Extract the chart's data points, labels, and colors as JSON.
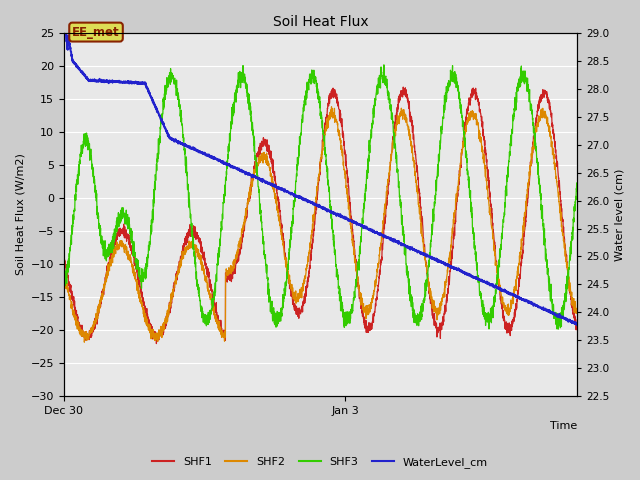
{
  "title": "Soil Heat Flux",
  "ylabel_left": "Soil Heat Flux (W/m2)",
  "ylabel_right": "Water level (cm)",
  "xlabel": "Time",
  "ylim_left": [
    -30,
    25
  ],
  "ylim_right": [
    22.5,
    29.0
  ],
  "x_tick_labels": [
    "Dec 30",
    "Jan 3"
  ],
  "x_tick_positions": [
    0.0,
    4.0
  ],
  "fig_bg_color": "#cccccc",
  "plot_bg_color": "#e8e8e8",
  "shf1_color": "#cc2222",
  "shf2_color": "#dd8800",
  "shf3_color": "#33cc00",
  "water_color": "#2222cc",
  "legend_label1": "SHF1",
  "legend_label2": "SHF2",
  "legend_label3": "SHF3",
  "legend_label4": "WaterLevel_cm",
  "annotation_text": "EE_met",
  "grid_color": "#ffffff",
  "total_days": 7.3,
  "n_points": 3000
}
